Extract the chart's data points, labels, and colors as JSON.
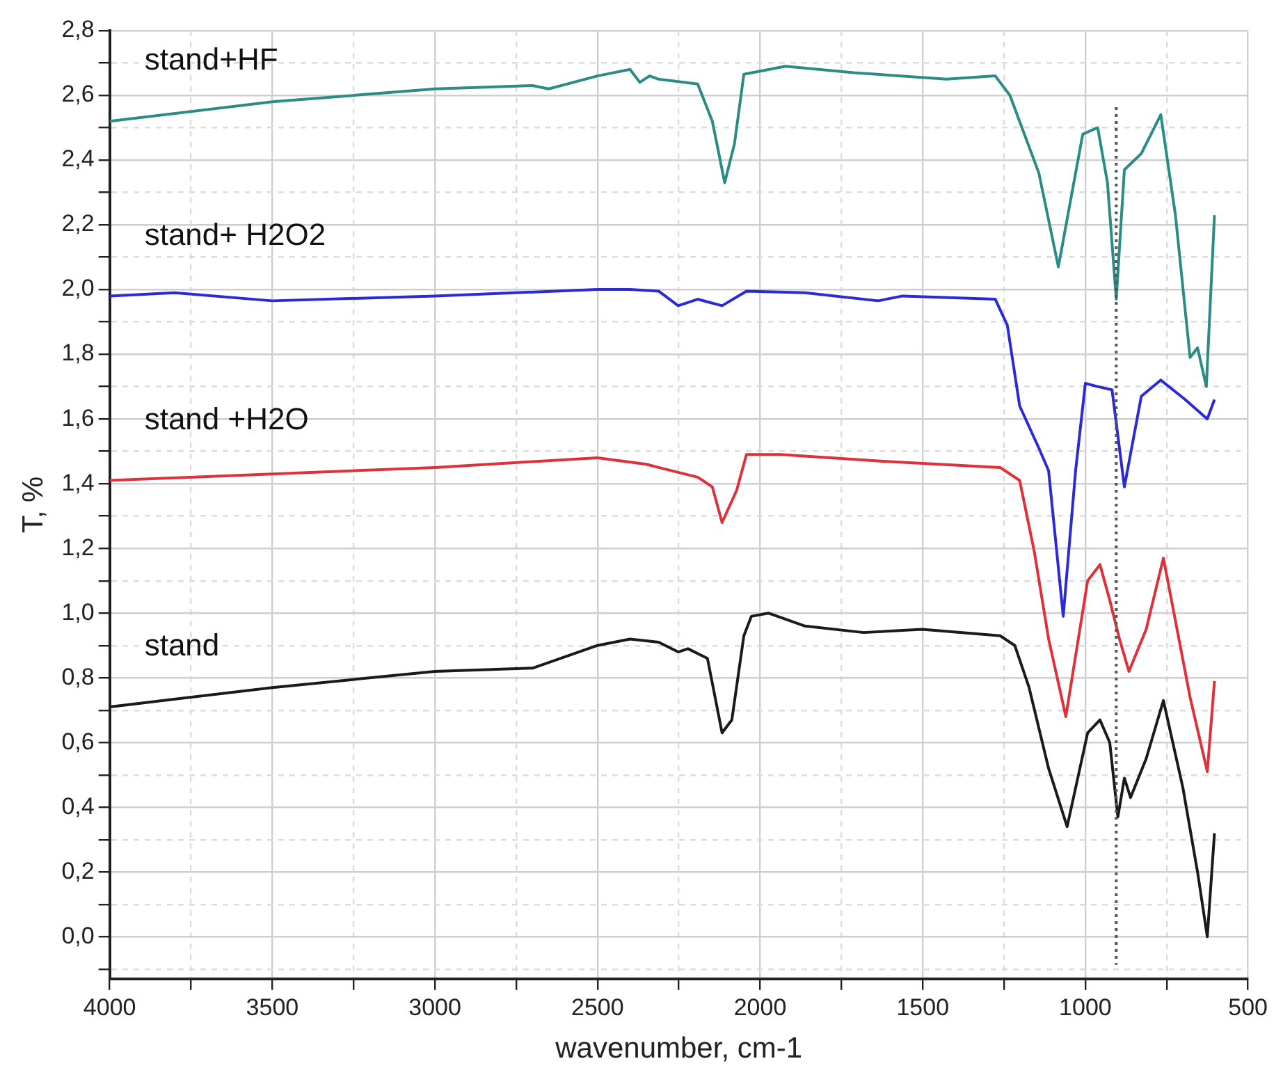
{
  "chart_data": {
    "type": "line",
    "xlabel": "wavenumber, cm-1",
    "ylabel": "T, %",
    "xlim": [
      4000,
      500
    ],
    "ylim": [
      -0.13,
      2.8
    ],
    "xticks": [
      {
        "value": 4000,
        "label": "4000"
      },
      {
        "value": 3750,
        "label": null
      },
      {
        "value": 3500,
        "label": "3500"
      },
      {
        "value": 3250,
        "label": null
      },
      {
        "value": 3000,
        "label": "3000"
      },
      {
        "value": 2750,
        "label": null
      },
      {
        "value": 2500,
        "label": "2500"
      },
      {
        "value": 2250,
        "label": null
      },
      {
        "value": 2000,
        "label": "2000"
      },
      {
        "value": 1750,
        "label": null
      },
      {
        "value": 1500,
        "label": "1500"
      },
      {
        "value": 1250,
        "label": null
      },
      {
        "value": 1000,
        "label": "1000"
      },
      {
        "value": 750,
        "label": null
      },
      {
        "value": 500,
        "label": "500"
      }
    ],
    "yticks": [
      {
        "value": -0.1,
        "label": null
      },
      {
        "value": 0,
        "label": "0,0"
      },
      {
        "value": 0.1,
        "label": null
      },
      {
        "value": 0.2,
        "label": "0,2"
      },
      {
        "value": 0.3,
        "label": null
      },
      {
        "value": 0.4,
        "label": "0,4"
      },
      {
        "value": 0.5,
        "label": null
      },
      {
        "value": 0.6,
        "label": "0,6"
      },
      {
        "value": 0.7,
        "label": null
      },
      {
        "value": 0.8,
        "label": "0,8"
      },
      {
        "value": 0.9,
        "label": null
      },
      {
        "value": 1.0,
        "label": "1,0"
      },
      {
        "value": 1.1,
        "label": null
      },
      {
        "value": 1.2,
        "label": "1,2"
      },
      {
        "value": 1.3,
        "label": null
      },
      {
        "value": 1.4,
        "label": "1,4"
      },
      {
        "value": 1.5,
        "label": null
      },
      {
        "value": 1.6,
        "label": "1,6"
      },
      {
        "value": 1.7,
        "label": null
      },
      {
        "value": 1.8,
        "label": "1,8"
      },
      {
        "value": 1.9,
        "label": null
      },
      {
        "value": 2.0,
        "label": "2,0"
      },
      {
        "value": 2.1,
        "label": null
      },
      {
        "value": 2.2,
        "label": "2,2"
      },
      {
        "value": 2.3,
        "label": null
      },
      {
        "value": 2.4,
        "label": "2,4"
      },
      {
        "value": 2.5,
        "label": null
      },
      {
        "value": 2.6,
        "label": "2,6"
      },
      {
        "value": 2.7,
        "label": null
      },
      {
        "value": 2.8,
        "label": "2,8"
      }
    ],
    "grid": true,
    "legend": false,
    "marker": "none",
    "line_style": "solid",
    "ref_lines": [
      {
        "axis": "x",
        "value": 905,
        "color": "#555555",
        "line_style": "dotted"
      }
    ],
    "series": [
      {
        "name": "stand",
        "color": "#1a1a1a",
        "x": [
          4000,
          3500,
          3000,
          2700,
          2500,
          2400,
          2312,
          2252,
          2222,
          2162,
          2117,
          2087,
          2050,
          2027,
          1975,
          1862,
          1682,
          1502,
          1262,
          1217,
          1173,
          1113,
          1056,
          993,
          955,
          925,
          900,
          880,
          861,
          813,
          760,
          700,
          655,
          625,
          603
        ],
        "values": [
          0.71,
          0.77,
          0.82,
          0.83,
          0.9,
          0.92,
          0.91,
          0.88,
          0.89,
          0.86,
          0.63,
          0.67,
          0.93,
          0.99,
          1.0,
          0.96,
          0.94,
          0.95,
          0.93,
          0.9,
          0.77,
          0.52,
          0.34,
          0.63,
          0.67,
          0.6,
          0.37,
          0.49,
          0.43,
          0.55,
          0.73,
          0.46,
          0.2,
          0.0,
          0.32
        ]
      },
      {
        "name": "stand +H2O",
        "color": "#e0303a",
        "x": [
          4000,
          3500,
          3000,
          2500,
          2350,
          2312,
          2192,
          2147,
          2117,
          2072,
          2042,
          1937,
          1637,
          1262,
          1202,
          1157,
          1113,
          1060,
          993,
          955,
          925,
          895,
          866,
          813,
          760,
          678,
          625,
          603
        ],
        "values": [
          1.41,
          1.43,
          1.45,
          1.48,
          1.46,
          1.45,
          1.42,
          1.39,
          1.28,
          1.38,
          1.49,
          1.49,
          1.47,
          1.45,
          1.41,
          1.19,
          0.92,
          0.68,
          1.1,
          1.15,
          1.04,
          0.92,
          0.82,
          0.95,
          1.17,
          0.74,
          0.51,
          0.79
        ]
      },
      {
        "name": "stand+ H2O2",
        "color": "#2a2ad8",
        "x": [
          4000,
          3800,
          3500,
          3000,
          2500,
          2400,
          2312,
          2252,
          2192,
          2117,
          2042,
          1862,
          1637,
          1562,
          1277,
          1240,
          1202,
          1143,
          1113,
          1068,
          1030,
          1000,
          962,
          918,
          880,
          828,
          768,
          693,
          625,
          603
        ],
        "values": [
          1.98,
          1.99,
          1.965,
          1.98,
          2.0,
          2.0,
          1.995,
          1.95,
          1.97,
          1.95,
          1.995,
          1.99,
          1.965,
          1.98,
          1.97,
          1.89,
          1.64,
          1.51,
          1.44,
          0.99,
          1.44,
          1.71,
          1.7,
          1.69,
          1.39,
          1.67,
          1.72,
          1.66,
          1.6,
          1.66
        ]
      },
      {
        "name": "stand+HF",
        "color": "#2a8c84",
        "x": [
          4000,
          3500,
          3000,
          2700,
          2650,
          2500,
          2400,
          2370,
          2340,
          2312,
          2192,
          2147,
          2109,
          2079,
          2050,
          1922,
          1712,
          1427,
          1277,
          1232,
          1143,
          1083,
          1008,
          962,
          932,
          905,
          880,
          828,
          768,
          723,
          678,
          655,
          628,
          603
        ],
        "values": [
          2.52,
          2.58,
          2.62,
          2.63,
          2.62,
          2.66,
          2.68,
          2.64,
          2.66,
          2.65,
          2.635,
          2.52,
          2.33,
          2.45,
          2.665,
          2.69,
          2.67,
          2.65,
          2.66,
          2.6,
          2.36,
          2.07,
          2.48,
          2.5,
          2.33,
          1.97,
          2.37,
          2.42,
          2.54,
          2.23,
          1.79,
          1.82,
          1.7,
          2.23
        ]
      }
    ]
  }
}
